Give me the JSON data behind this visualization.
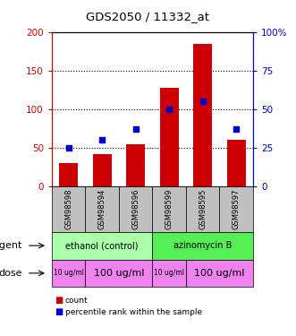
{
  "title": "GDS2050 / 11332_at",
  "samples": [
    "GSM98598",
    "GSM98594",
    "GSM98596",
    "GSM98599",
    "GSM98595",
    "GSM98597"
  ],
  "counts": [
    30,
    42,
    55,
    128,
    185,
    60
  ],
  "percentile_ranks": [
    25,
    30,
    37,
    50,
    55,
    37
  ],
  "bar_color": "#cc0000",
  "dot_color": "#0000cc",
  "ylim_left": [
    0,
    200
  ],
  "ylim_right": [
    0,
    100
  ],
  "yticks_left": [
    0,
    50,
    100,
    150,
    200
  ],
  "yticks_right": [
    0,
    25,
    50,
    75,
    100
  ],
  "ytick_labels_left": [
    "0",
    "50",
    "100",
    "150",
    "200"
  ],
  "ytick_labels_right": [
    "0",
    "25",
    "50",
    "75",
    "100%"
  ],
  "agent_groups": [
    {
      "label": "ethanol (control)",
      "span": [
        0,
        3
      ],
      "color": "#aaffaa"
    },
    {
      "label": "azinomycin B",
      "span": [
        3,
        6
      ],
      "color": "#55ee55"
    }
  ],
  "dose_groups": [
    {
      "label": "10 ug/ml",
      "span": [
        0,
        1
      ],
      "color": "#ee82ee",
      "fontsize": 5.5
    },
    {
      "label": "100 ug/ml",
      "span": [
        1,
        3
      ],
      "color": "#ee82ee",
      "fontsize": 8
    },
    {
      "label": "10 ug/ml",
      "span": [
        3,
        4
      ],
      "color": "#ee82ee",
      "fontsize": 5.5
    },
    {
      "label": "100 ug/ml",
      "span": [
        4,
        6
      ],
      "color": "#ee82ee",
      "fontsize": 8
    }
  ],
  "header_bg": "#c0c0c0",
  "legend_count_color": "#cc0000",
  "legend_percentile_color": "#0000cc",
  "left_axis_color": "#cc0000",
  "right_axis_color": "#0000cc"
}
